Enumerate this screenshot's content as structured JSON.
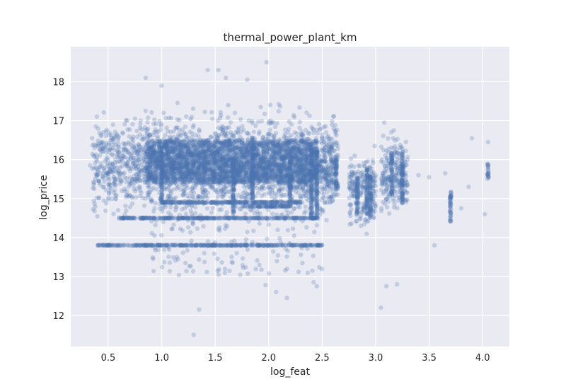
{
  "chart_data": {
    "type": "scatter",
    "title": "thermal_power_plant_km",
    "xlabel": "log_feat",
    "ylabel": "log_price",
    "xlim": [
      0.15,
      4.25
    ],
    "ylim": [
      11.2,
      18.9
    ],
    "xticks": [
      0.5,
      1.0,
      1.5,
      2.0,
      2.5,
      3.0,
      3.5,
      4.0
    ],
    "yticks": [
      12,
      13,
      14,
      15,
      16,
      17,
      18
    ],
    "grid": true,
    "legend": "none",
    "colors": {
      "point": "#4c72b0",
      "background": "#eaeaf2",
      "grid": "#ffffff",
      "text": "#262626"
    },
    "point_alpha": 0.25,
    "main_cloud": {
      "x_range": [
        0.35,
        2.65
      ],
      "y_center": 15.85,
      "y_spread": 0.55
    },
    "dense_core": {
      "x_range": [
        0.85,
        2.45
      ],
      "y_range": [
        15.4,
        16.5
      ]
    },
    "horizontal_bands": [
      {
        "y": 13.8,
        "x_range": [
          0.4,
          2.5
        ]
      },
      {
        "y": 14.5,
        "x_range": [
          0.6,
          2.45
        ]
      },
      {
        "y": 14.9,
        "x_range": [
          1.0,
          2.3
        ]
      },
      {
        "y": 14.8,
        "x_range": [
          1.75,
          2.2
        ]
      }
    ],
    "vertical_columns": [
      {
        "x": 1.0,
        "y_range": [
          14.9,
          16.3
        ]
      },
      {
        "x": 1.67,
        "y_range": [
          14.5,
          16.1
        ]
      },
      {
        "x": 1.85,
        "y_range": [
          14.8,
          16.6
        ]
      },
      {
        "x": 2.2,
        "y_range": [
          14.8,
          16.2
        ]
      },
      {
        "x": 2.4,
        "y_range": [
          14.5,
          16.3
        ]
      },
      {
        "x": 2.45,
        "y_range": [
          14.5,
          16.3
        ]
      },
      {
        "x": 2.63,
        "y_range": [
          15.2,
          16.0
        ]
      },
      {
        "x": 2.83,
        "y_range": [
          14.6,
          15.6
        ]
      },
      {
        "x": 2.92,
        "y_range": [
          14.6,
          15.8
        ]
      },
      {
        "x": 2.95,
        "y_range": [
          14.5,
          15.6
        ]
      },
      {
        "x": 3.15,
        "y_range": [
          15.1,
          16.2
        ]
      },
      {
        "x": 3.25,
        "y_range": [
          14.8,
          16.3
        ]
      },
      {
        "x": 3.7,
        "y_range": [
          14.4,
          15.2
        ]
      },
      {
        "x": 4.05,
        "y_range": [
          15.5,
          15.9
        ]
      }
    ],
    "right_clusters": [
      {
        "x_range": [
          3.05,
          3.3
        ],
        "y_center": 15.6,
        "y_spread": 0.4
      },
      {
        "x_range": [
          2.75,
          3.0
        ],
        "y_center": 15.2,
        "y_spread": 0.4
      }
    ],
    "outliers": [
      [
        1.3,
        11.5
      ],
      [
        1.35,
        12.15
      ],
      [
        2.07,
        12.6
      ],
      [
        2.17,
        12.45
      ],
      [
        1.97,
        12.78
      ],
      [
        2.42,
        12.85
      ],
      [
        2.45,
        12.75
      ],
      [
        3.05,
        12.2
      ],
      [
        3.2,
        12.8
      ],
      [
        3.1,
        12.75
      ],
      [
        3.55,
        13.8
      ],
      [
        3.65,
        15.65
      ],
      [
        3.8,
        14.75
      ],
      [
        3.87,
        15.3
      ],
      [
        3.9,
        16.55
      ],
      [
        4.02,
        14.6
      ],
      [
        4.05,
        16.45
      ],
      [
        1.98,
        18.5
      ],
      [
        1.43,
        18.3
      ],
      [
        1.53,
        18.3
      ],
      [
        1.6,
        18.1
      ],
      [
        1.8,
        18.05
      ],
      [
        0.85,
        18.1
      ],
      [
        1.0,
        17.9
      ],
      [
        3.08,
        16.95
      ],
      [
        3.17,
        16.75
      ],
      [
        3.4,
        15.6
      ],
      [
        3.5,
        15.55
      ],
      [
        0.35,
        16.55
      ],
      [
        0.33,
        15.85
      ]
    ]
  }
}
